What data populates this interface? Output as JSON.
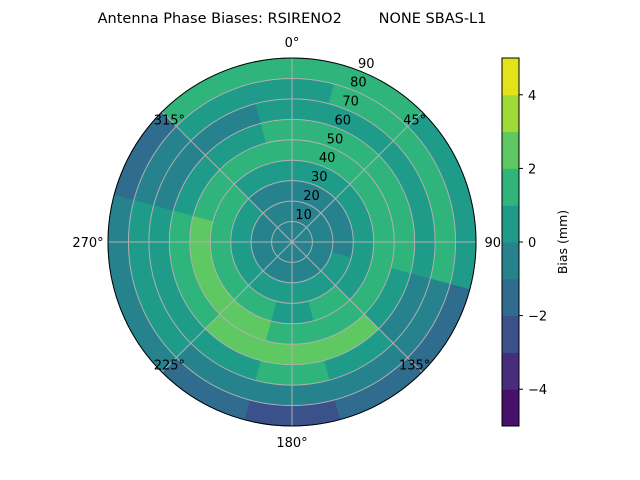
{
  "chart_data": {
    "type": "heatmap",
    "subtype": "polar-contour",
    "title": "Antenna Phase Biases: RSIRENO2        NONE SBAS-L1",
    "angular_direction": "clockwise",
    "zero_location": "top",
    "angle_tick_labels": [
      "0°",
      "45°",
      "90°",
      "135°",
      "180°",
      "225°",
      "270°",
      "315°"
    ],
    "angle_ticks": [
      0,
      45,
      90,
      135,
      180,
      225,
      270,
      315
    ],
    "radial_ticks": [
      10,
      20,
      30,
      40,
      50,
      60,
      70,
      80,
      90
    ],
    "radial_tick_labels": [
      "10",
      "20",
      "30",
      "40",
      "50",
      "60",
      "70",
      "80",
      "90"
    ],
    "rlim": [
      0,
      90
    ],
    "grid": true,
    "colorbar": {
      "label": "Bias (mm)",
      "levels": [
        -5,
        -4,
        -3,
        -2,
        -1,
        0,
        1,
        2,
        3,
        4,
        5
      ],
      "tick_values": [
        -4,
        -2,
        0,
        2,
        4
      ],
      "tick_labels": [
        "−4",
        "−2",
        "0",
        "2",
        "4"
      ],
      "colors": [
        "#45116a",
        "#472e7c",
        "#3b518b",
        "#2f6c8e",
        "#26838e",
        "#1f9b8a",
        "#2fb47c",
        "#5ec962",
        "#a0da39",
        "#e3e418"
      ],
      "colormap": "viridis",
      "placement": "right"
    },
    "azimuths": [
      0,
      30,
      60,
      90,
      120,
      150,
      180,
      210,
      240,
      270,
      300,
      330
    ],
    "radii": [
      5,
      15,
      25,
      35,
      45,
      55,
      65,
      75,
      85
    ],
    "values": [
      [
        -0.5,
        -0.5,
        -0.5,
        0.5,
        1.5,
        1.5,
        0.5,
        0.5,
        1.5
      ],
      [
        -0.5,
        -0.5,
        -0.5,
        0.5,
        1.5,
        1.5,
        0.5,
        1.5,
        1.5
      ],
      [
        -0.5,
        -0.5,
        -0.5,
        0.5,
        1.5,
        1.5,
        0.5,
        1.5,
        0.5
      ],
      [
        -0.5,
        -0.5,
        -0.5,
        0.5,
        1.5,
        1.5,
        0.5,
        1.5,
        0.5
      ],
      [
        -0.5,
        -0.5,
        0.5,
        0.5,
        1.5,
        0.5,
        -0.5,
        -0.5,
        -1.5
      ],
      [
        -0.5,
        -0.5,
        0.5,
        1.5,
        1.5,
        2.5,
        0.5,
        -0.5,
        -1.5
      ],
      [
        -0.5,
        -0.5,
        0.5,
        0.5,
        1.5,
        2.5,
        1.5,
        -0.5,
        -2.5
      ],
      [
        -0.5,
        -0.5,
        0.5,
        1.5,
        2.5,
        2.5,
        0.5,
        -0.5,
        -1.5
      ],
      [
        -0.5,
        -0.5,
        0.5,
        1.5,
        2.5,
        1.5,
        0.5,
        0.5,
        -0.5
      ],
      [
        -0.5,
        -0.5,
        0.5,
        1.5,
        2.5,
        1.5,
        0.5,
        0.5,
        -0.5
      ],
      [
        -0.5,
        -0.5,
        0.5,
        1.5,
        1.5,
        0.5,
        -0.5,
        -0.5,
        -1.5
      ],
      [
        -0.5,
        -0.5,
        -0.5,
        0.5,
        1.5,
        0.5,
        -0.5,
        0.5,
        1.5
      ]
    ]
  }
}
